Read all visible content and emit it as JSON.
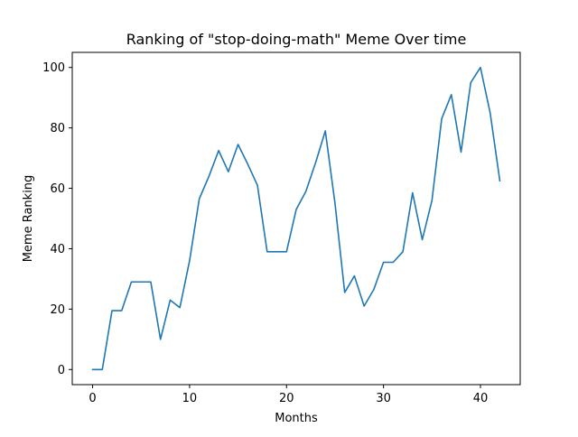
{
  "chart_data": {
    "type": "line",
    "title": "Ranking of \"stop-doing-math\" Meme Over time",
    "xlabel": "Months",
    "ylabel": "Meme Ranking",
    "xlim": [
      -2.1,
      44.1
    ],
    "ylim": [
      -5,
      105
    ],
    "xticks": [
      0,
      10,
      20,
      30,
      40
    ],
    "yticks": [
      0,
      20,
      40,
      60,
      80,
      100
    ],
    "grid": false,
    "legend": "none",
    "colors": {
      "line": "#1f77b4",
      "axes": "#000000",
      "background": "#ffffff"
    },
    "series": [
      {
        "x": [
          0,
          1,
          2,
          3,
          4,
          5,
          6,
          7,
          8,
          9,
          10,
          11,
          12,
          13,
          14,
          15,
          16,
          17,
          18,
          19,
          20,
          21,
          22,
          23,
          24,
          25,
          26,
          27,
          28,
          29,
          30,
          31,
          32,
          33,
          34,
          35,
          36,
          37,
          38,
          39,
          40,
          41,
          42
        ],
        "values": [
          0,
          0,
          19.5,
          19.5,
          29,
          29,
          29,
          10,
          23,
          20.5,
          36,
          56.5,
          64,
          72.5,
          65.5,
          74.5,
          68,
          61,
          39,
          39,
          39,
          53,
          59,
          68.5,
          79,
          55,
          25.5,
          31,
          21,
          26.5,
          35.5,
          35.5,
          39,
          58.5,
          43,
          56,
          83,
          91,
          72,
          95,
          100,
          85,
          62.5
        ]
      }
    ]
  }
}
